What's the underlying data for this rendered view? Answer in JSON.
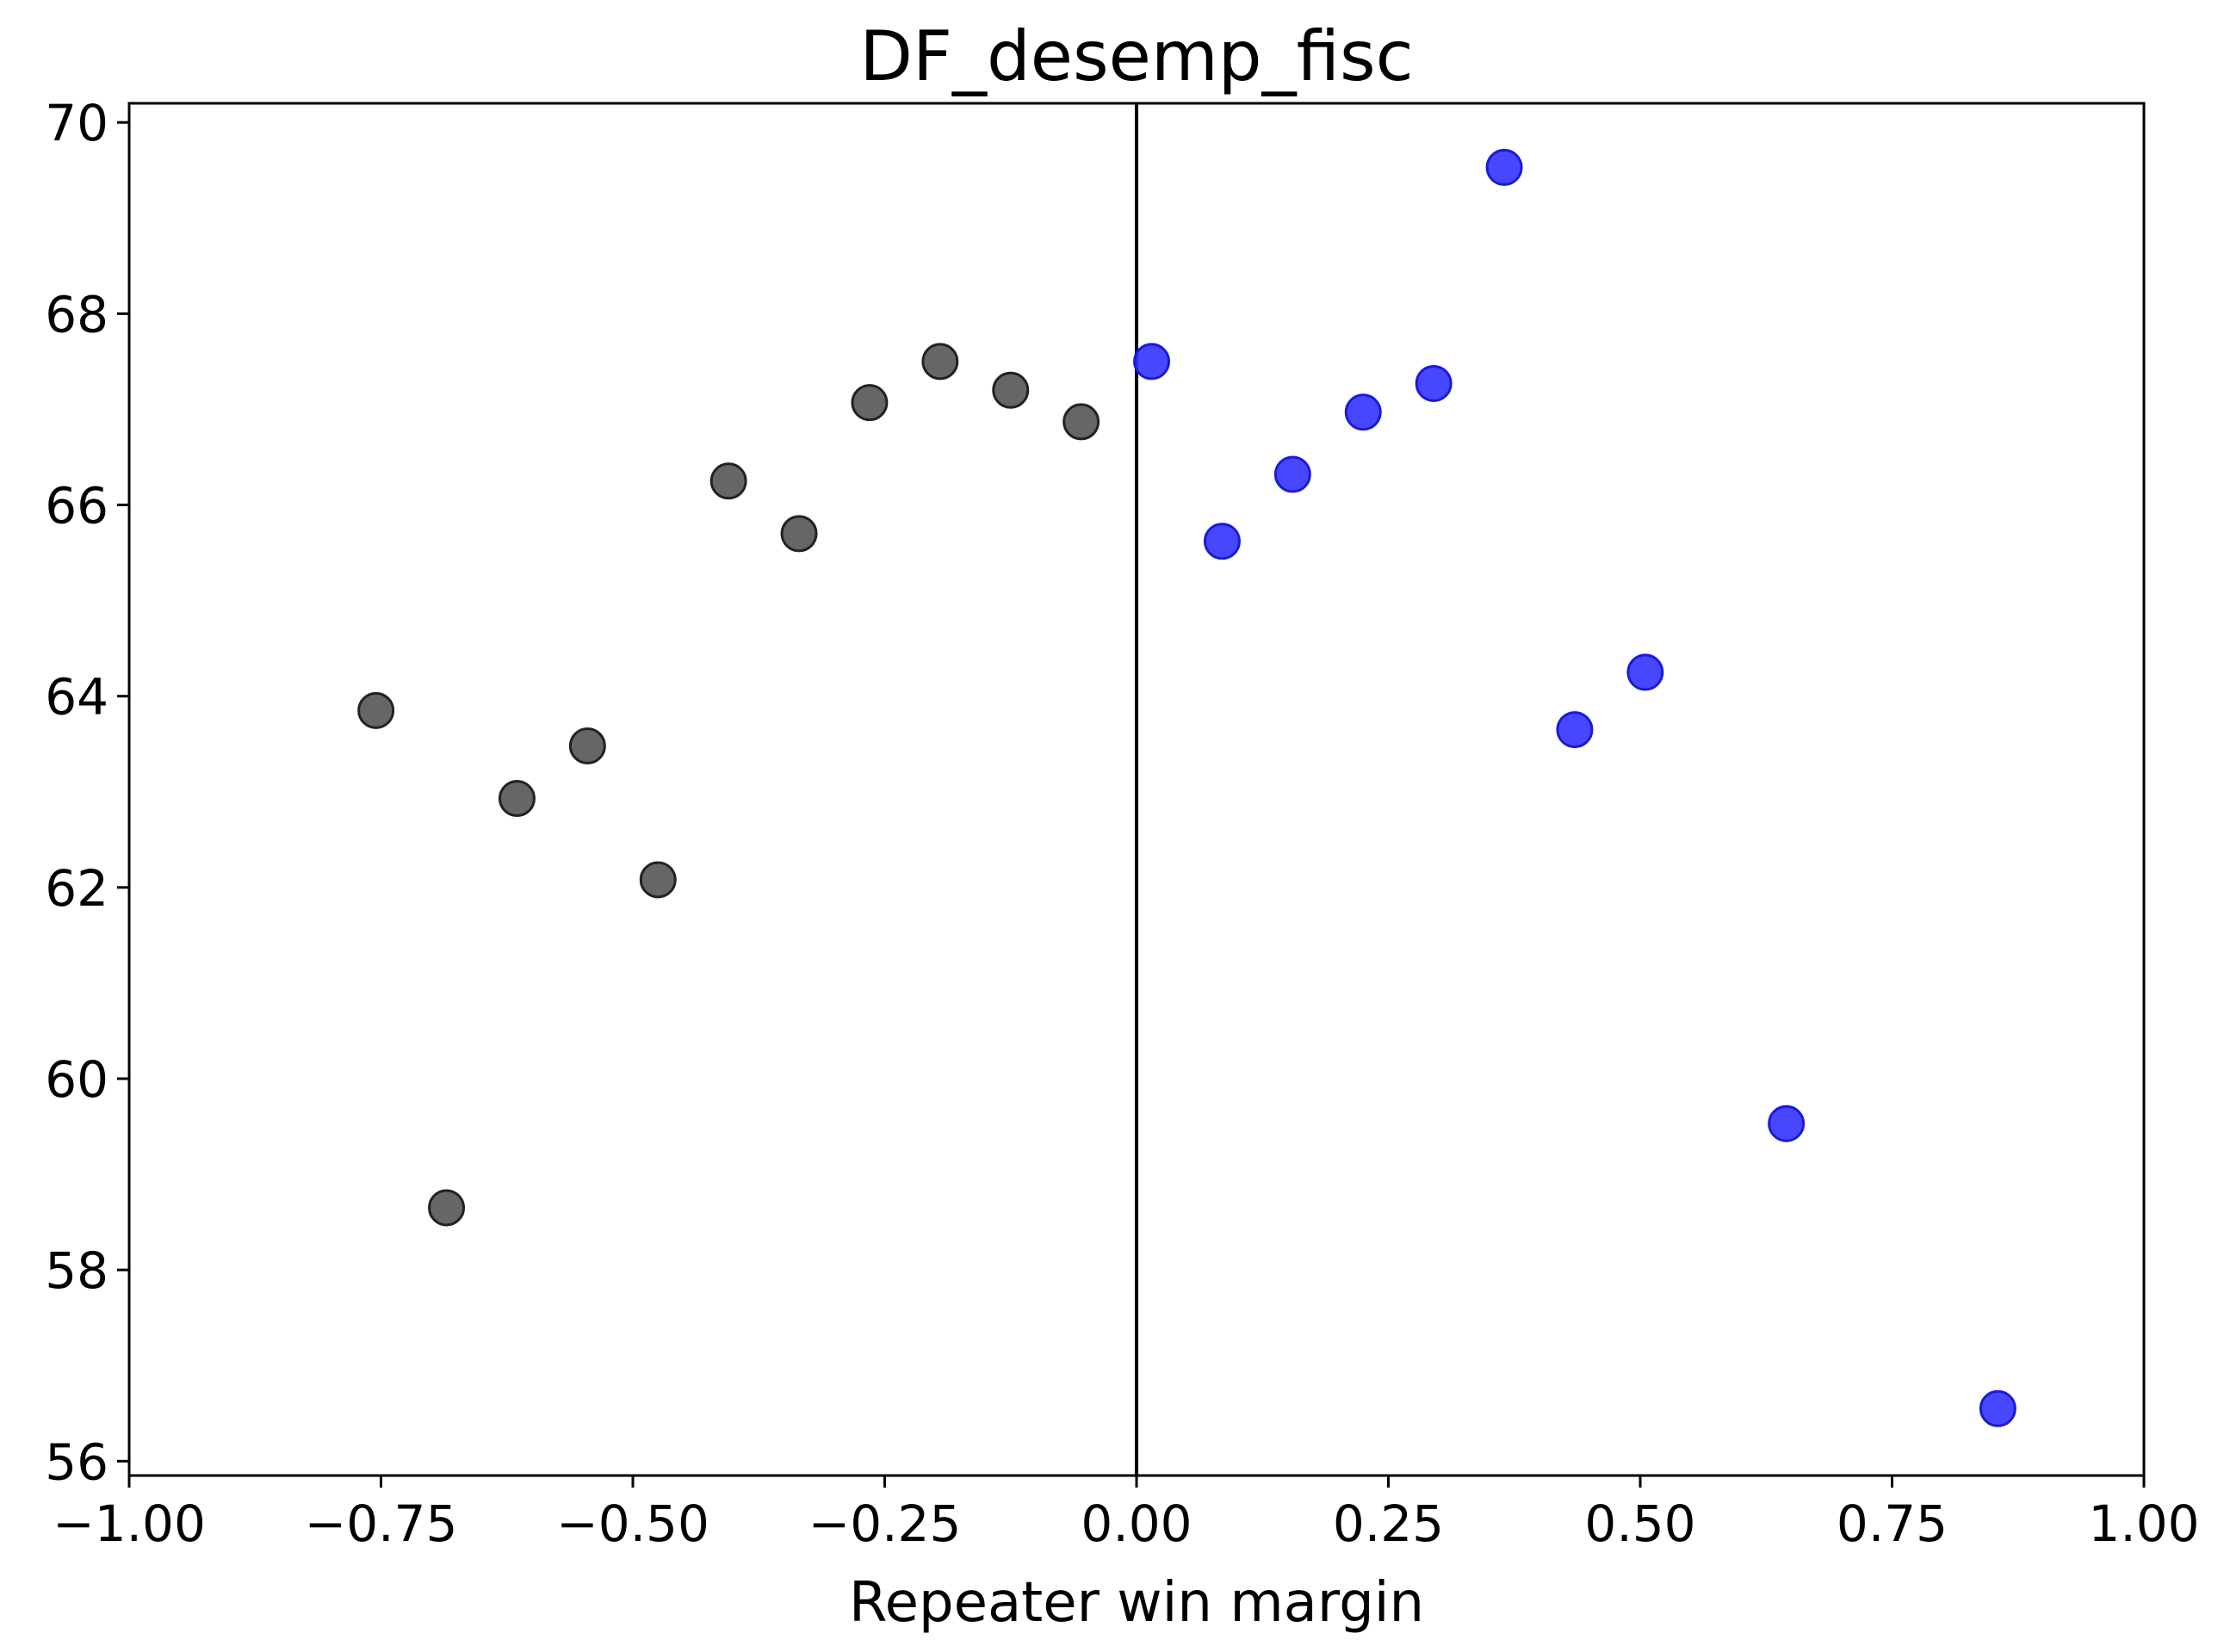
{
  "chart_data": {
    "type": "scatter",
    "title": "DF_desemp_fisc",
    "xlabel": "Repeater win margin",
    "ylabel": "",
    "xlim": [
      -1.0,
      1.0
    ],
    "ylim": [
      55.85,
      70.2
    ],
    "x_ticks": [
      -1.0,
      -0.75,
      -0.5,
      -0.25,
      0.0,
      0.25,
      0.5,
      0.75,
      1.0
    ],
    "x_tick_labels": [
      "−1.00",
      "−0.75",
      "−0.50",
      "−0.25",
      "0.00",
      "0.25",
      "0.50",
      "0.75",
      "1.00"
    ],
    "y_ticks": [
      56,
      58,
      60,
      62,
      64,
      66,
      68,
      70
    ],
    "y_tick_labels": [
      "56",
      "58",
      "60",
      "62",
      "64",
      "66",
      "68",
      "70"
    ],
    "grid": false,
    "vertical_line_x": 0.0,
    "series": [
      {
        "color": "#555555",
        "edge_color": "#222222",
        "points": [
          {
            "x": -0.755,
            "y": 63.85
          },
          {
            "x": -0.685,
            "y": 58.65
          },
          {
            "x": -0.615,
            "y": 62.93
          },
          {
            "x": -0.545,
            "y": 63.48
          },
          {
            "x": -0.475,
            "y": 62.08
          },
          {
            "x": -0.405,
            "y": 66.25
          },
          {
            "x": -0.335,
            "y": 65.7
          },
          {
            "x": -0.265,
            "y": 67.07
          },
          {
            "x": -0.195,
            "y": 67.5
          },
          {
            "x": -0.125,
            "y": 67.2
          },
          {
            "x": -0.055,
            "y": 66.87
          }
        ]
      },
      {
        "color": "#3333ff",
        "edge_color": "#1a1ad9",
        "points": [
          {
            "x": 0.015,
            "y": 67.5
          },
          {
            "x": 0.085,
            "y": 65.62
          },
          {
            "x": 0.155,
            "y": 66.32
          },
          {
            "x": 0.225,
            "y": 66.97
          },
          {
            "x": 0.295,
            "y": 67.27
          },
          {
            "x": 0.365,
            "y": 69.53
          },
          {
            "x": 0.435,
            "y": 63.65
          },
          {
            "x": 0.505,
            "y": 64.25
          },
          {
            "x": 0.645,
            "y": 59.53
          },
          {
            "x": 0.855,
            "y": 56.55
          }
        ]
      }
    ]
  }
}
